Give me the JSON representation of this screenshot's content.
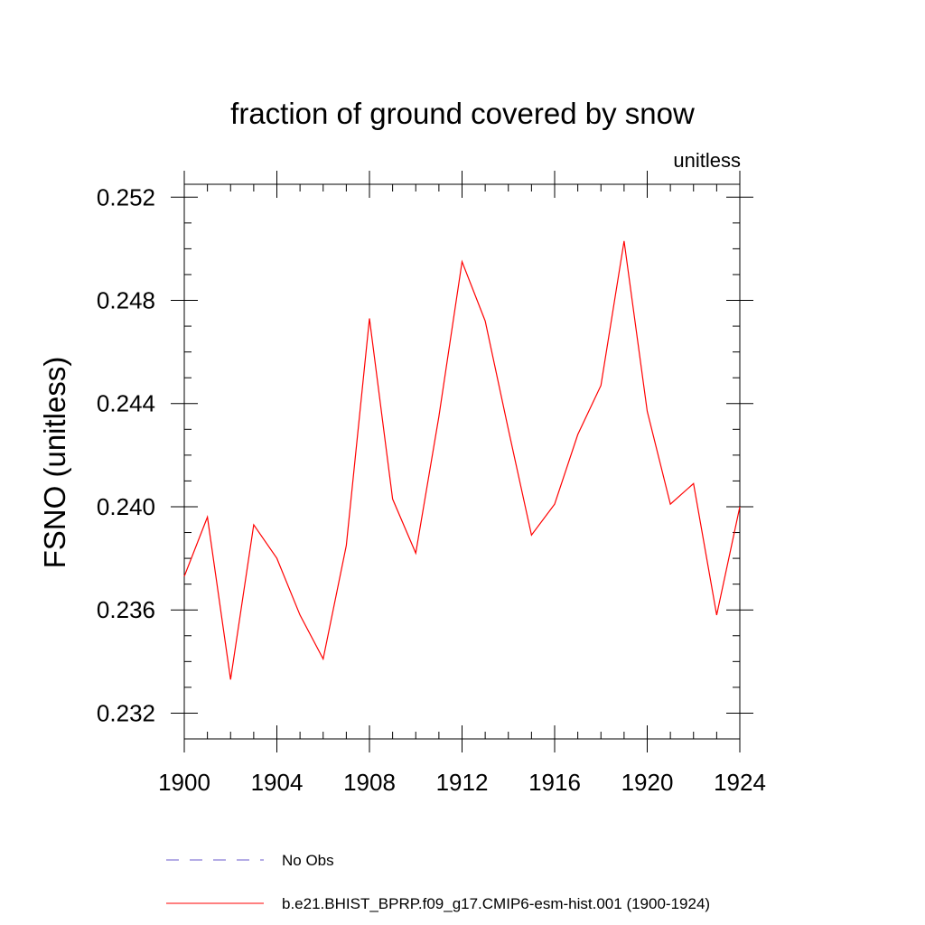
{
  "chart_data": {
    "type": "line",
    "title": "fraction of ground covered by snow",
    "subtitle": "unitless",
    "ylabel": "FSNO  (unitless)",
    "xlabel": "",
    "xlim": [
      1900,
      1924
    ],
    "ylim": [
      0.231,
      0.2525
    ],
    "x_ticks": [
      1900,
      1904,
      1908,
      1912,
      1916,
      1920,
      1924
    ],
    "x_minor_step": 1,
    "y_ticks": [
      0.232,
      0.236,
      0.24,
      0.244,
      0.248,
      0.252
    ],
    "y_tick_labels": [
      "0.232",
      "0.236",
      "0.240",
      "0.244",
      "0.248",
      "0.252"
    ],
    "y_minor_step": 0.001,
    "grid": false,
    "legend_position": "bottom-left",
    "legend": [
      {
        "label": "No Obs",
        "color": "#6a5acd",
        "dash": "dashed"
      },
      {
        "label": "b.e21.BHIST_BPRP.f09_g17.CMIP6-esm-hist.001 (1900-1924)",
        "color": "#ff0000",
        "dash": "solid"
      }
    ],
    "series": [
      {
        "color": "#ff0000",
        "x": [
          1900,
          1901,
          1902,
          1903,
          1904,
          1905,
          1906,
          1907,
          1908,
          1909,
          1910,
          1911,
          1912,
          1913,
          1914,
          1915,
          1916,
          1917,
          1918,
          1919,
          1920,
          1921,
          1922,
          1923,
          1924
        ],
        "values": [
          0.2373,
          0.2396,
          0.2333,
          0.2393,
          0.238,
          0.2358,
          0.2341,
          0.2385,
          0.2473,
          0.2403,
          0.2382,
          0.2435,
          0.2495,
          0.2472,
          0.243,
          0.2389,
          0.2401,
          0.2428,
          0.2447,
          0.2503,
          0.2437,
          0.2401,
          0.2409,
          0.2358,
          0.24
        ]
      }
    ]
  }
}
